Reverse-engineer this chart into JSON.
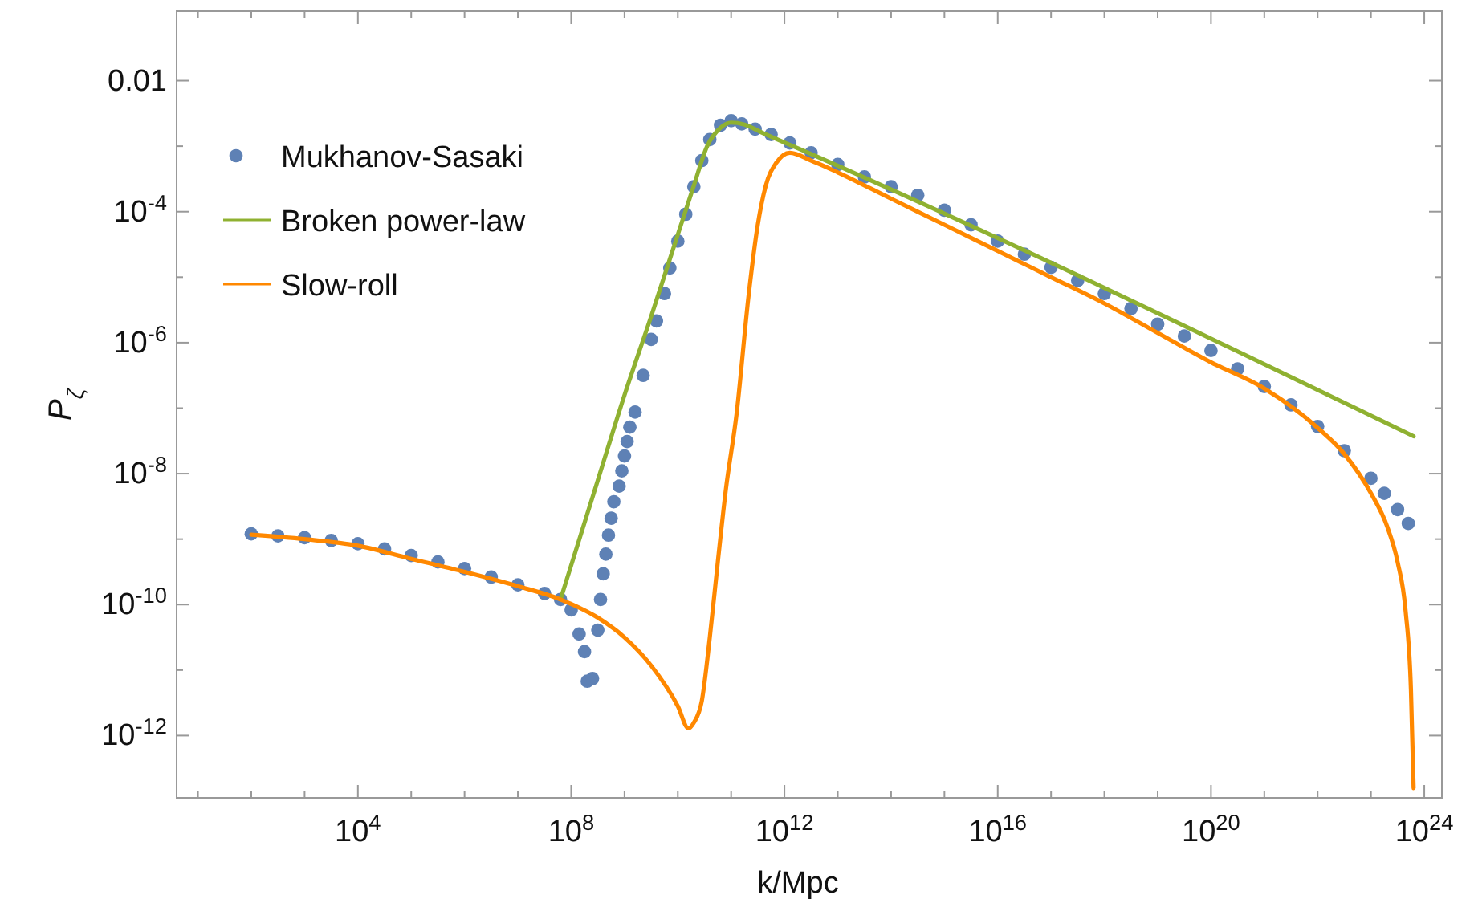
{
  "chart_data": {
    "type": "line",
    "xlabel": "k/Mpc",
    "ylabel": "P$_{ζ}$",
    "log": "xy",
    "grid": false,
    "legend": "top left",
    "xlim": [
      3.98,
      2.14e+24
    ],
    "xticks": [
      {
        "value": 10.0,
        "label": null
      },
      {
        "value": 100.0,
        "label": null
      },
      {
        "value": 1000.0,
        "label": null
      },
      {
        "value": 10000.0,
        "label": "10$^{4}$"
      },
      {
        "value": 100000.0,
        "label": null
      },
      {
        "value": 1000000.0,
        "label": null
      },
      {
        "value": 10000000.0,
        "label": null
      },
      {
        "value": 100000000.0,
        "label": "10$^{8}$"
      },
      {
        "value": 1000000000.0,
        "label": null
      },
      {
        "value": 10000000000.0,
        "label": null
      },
      {
        "value": 100000000000.0,
        "label": null
      },
      {
        "value": 1000000000000.0,
        "label": "10$^{12}$"
      },
      {
        "value": 10000000000000.0,
        "label": null
      },
      {
        "value": 100000000000000.0,
        "label": null
      },
      {
        "value": 1000000000000000.0,
        "label": null
      },
      {
        "value": 1e+16,
        "label": "10$^{16}$"
      },
      {
        "value": 1e+17,
        "label": null
      },
      {
        "value": 1e+18,
        "label": null
      },
      {
        "value": 1e+19,
        "label": null
      },
      {
        "value": 1e+20,
        "label": "10$^{20}$"
      },
      {
        "value": 1e+21,
        "label": null
      },
      {
        "value": 1e+22,
        "label": null
      },
      {
        "value": 1e+23,
        "label": null
      },
      {
        "value": 1e+24,
        "label": "10$^{24}$"
      }
    ],
    "ylim": [
      1.12e-13,
      0.115
    ],
    "yticks": [
      0.01,
      {
        "value": 0.001,
        "label": null
      },
      {
        "value": 0.0001,
        "label": "10$^{-4}$"
      },
      {
        "value": 1e-05,
        "label": null
      },
      {
        "value": 1e-06,
        "label": "10$^{-6}$"
      },
      {
        "value": 1e-07,
        "label": null
      },
      {
        "value": 1e-08,
        "label": "10$^{-8}$"
      },
      {
        "value": 1e-09,
        "label": null
      },
      {
        "value": 1e-10,
        "label": "10$^{-10}$"
      },
      {
        "value": 1e-11,
        "label": null
      },
      {
        "value": 1e-12,
        "label": "10$^{-12}$"
      }
    ],
    "series": [
      {
        "name": "Mukhanov-Sasaki",
        "type": "scatter",
        "marker": "circle",
        "color": "#5e81b5",
        "x": [
          100.0,
          316.0,
          1000.0,
          3160.0,
          10000.0,
          31600.0,
          100000.0,
          316000.0,
          1000000.0,
          3160000.0,
          10000000.0,
          31600000.0,
          63100000.0,
          100000000.0,
          141000000.0,
          178000000.0,
          200000000.0,
          251000000.0,
          316000000.0,
          355000000.0,
          398000000.0,
          447000000.0,
          501000000.0,
          562000000.0,
          631000000.0,
          794000000.0,
          891000000.0,
          1000000000.0,
          1120000000.0,
          1260000000.0,
          1580000000.0,
          2240000000.0,
          3160000000.0,
          3980000000.0,
          5620000000.0,
          7080000000.0,
          10000000000.0,
          14100000000.0,
          20000000000.0,
          28200000000.0,
          39800000000.0,
          63100000000.0,
          100000000000.0,
          158000000000.0,
          282000000000.0,
          562000000000.0,
          1260000000000.0,
          3160000000000.0,
          10000000000000.0,
          31600000000000.0,
          100000000000000.0,
          316000000000000.0,
          1000000000000000.0,
          3160000000000000.0,
          1e+16,
          3.16e+16,
          1e+17,
          3.16e+17,
          1e+18,
          3.16e+18,
          1e+19,
          3.16e+19,
          1e+20,
          3.16e+20,
          1e+21,
          3.16e+21,
          1e+22,
          3.16e+22,
          1e+23,
          1.78e+23,
          3.16e+23,
          5.01e+23
        ],
        "values": [
          1.2e-09,
          1.12e-09,
          1.05e-09,
          9.55e-10,
          8.51e-10,
          7.08e-10,
          5.62e-10,
          4.47e-10,
          3.55e-10,
          2.63e-10,
          2e-10,
          1.48e-10,
          1.2e-10,
          8.32e-11,
          3.55e-11,
          1.91e-11,
          6.76e-12,
          7.41e-12,
          4.07e-11,
          1.2e-10,
          2.95e-10,
          5.89e-10,
          1.15e-09,
          2.09e-09,
          3.72e-09,
          6.46e-09,
          1.1e-08,
          1.86e-08,
          3.09e-08,
          5.13e-08,
          8.71e-08,
          3.16e-07,
          1.12e-06,
          2.14e-06,
          5.62e-06,
          1.38e-05,
          3.55e-05,
          9.12e-05,
          0.00024,
          0.000603,
          0.00126,
          0.00209,
          0.00245,
          0.00219,
          0.00182,
          0.00151,
          0.00112,
          0.000794,
          0.000525,
          0.000339,
          0.00024,
          0.000178,
          0.000105,
          6.31e-05,
          3.55e-05,
          2.24e-05,
          1.41e-05,
          8.91e-06,
          5.62e-06,
          3.31e-06,
          1.91e-06,
          1.26e-06,
          7.59e-07,
          3.98e-07,
          2.14e-07,
          1.12e-07,
          5.25e-08,
          2.24e-08,
          8.51e-09,
          5.01e-09,
          2.82e-09,
          1.74e-09
        ]
      },
      {
        "name": "Broken power-law",
        "color": "#8fb131",
        "x": [
          63100000.0,
          316000000.0,
          1000000000.0,
          3160000000.0,
          10000000000.0,
          20000000000.0,
          35500000000.0,
          63100000000.0,
          100000000000.0,
          178000000000.0,
          398000000000.0,
          3160000000000.0,
          6.31e+23
        ],
        "values": [
          1.2e-10,
          7.94e-09,
          1.58e-07,
          2.51e-06,
          4.47e-05,
          0.000251,
          0.001,
          0.00191,
          0.00229,
          0.00214,
          0.00158,
          0.000759,
          3.72e-08
        ]
      },
      {
        "name": "Slow-roll",
        "color": "#ff8800",
        "x": [
          100.0,
          1000.0,
          10000.0,
          100000.0,
          1000000.0,
          10000000.0,
          63100000.0,
          316000000.0,
          1000000000.0,
          3160000000.0,
          10000000000.0,
          15800000000.0,
          20000000000.0,
          28200000000.0,
          39800000000.0,
          56200000000.0,
          79400000000.0,
          126000000000.0,
          214000000000.0,
          316000000000.0,
          447000000000.0,
          708000000000.0,
          1260000000000.0,
          3160000000000.0,
          10000000000000.0,
          100000000000000.0,
          1000000000000000.0,
          1e+16,
          1e+17,
          1e+18,
          1e+19,
          1e+20,
          1e+21,
          1e+22,
          3.16e+22,
          1e+23,
          2e+23,
          3.16e+23,
          4.47e+23,
          5.62e+23,
          6.31e+23
        ],
        "values": [
          1.17e-09,
          1e-09,
          7.94e-10,
          5.01e-10,
          3.16e-10,
          1.91e-10,
          1.2e-10,
          6.31e-11,
          3.16e-11,
          1.17e-11,
          2.82e-12,
          1.29e-12,
          1.58e-12,
          3.39e-12,
          3.16e-11,
          4.47e-10,
          5.62e-09,
          7.94e-08,
          5.5e-06,
          6.31e-05,
          0.000251,
          0.000562,
          0.000794,
          0.000603,
          0.000398,
          0.000158,
          6.31e-05,
          2.51e-05,
          1e-05,
          3.98e-06,
          1.41e-06,
          5.01e-07,
          2e-07,
          5.01e-08,
          2e-08,
          5.01e-09,
          1.58e-09,
          4.47e-10,
          7.94e-11,
          5.01e-12,
          1.58e-13
        ]
      }
    ]
  }
}
